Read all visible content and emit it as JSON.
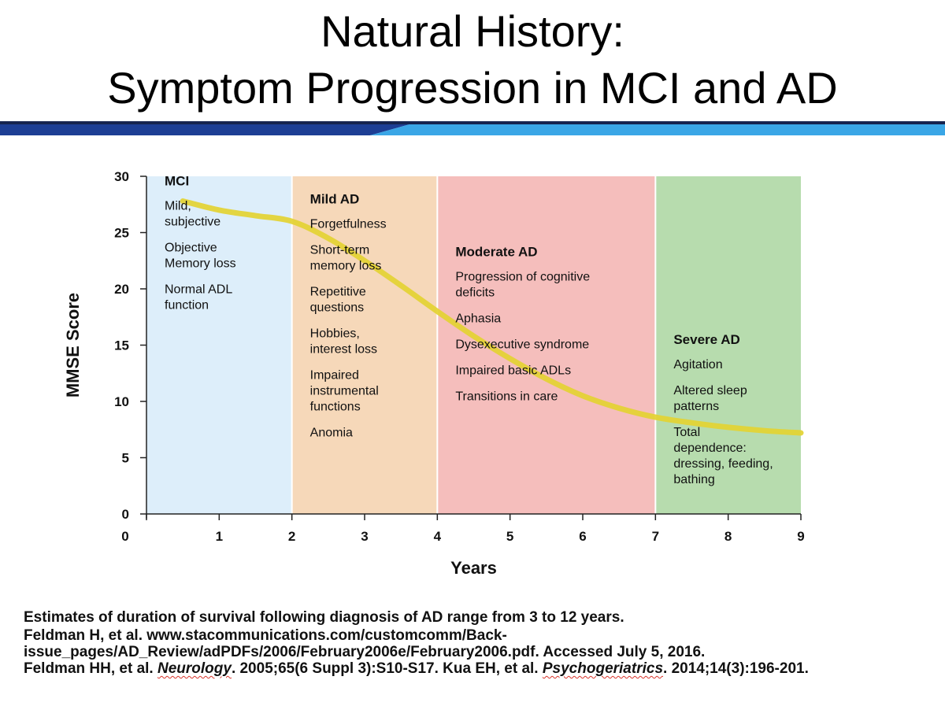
{
  "title": {
    "line1": "Natural History:",
    "line2": "Symptom Progression in MCI and AD"
  },
  "colors": {
    "banner_dark": "#16244f",
    "banner_mid": "#1d3e94",
    "banner_light": "#3aa6e6",
    "curve": "#e3d232",
    "axis": "#222222"
  },
  "chart_data": {
    "type": "line",
    "xlabel": "Years",
    "ylabel": "MMSE Score",
    "xlim": [
      0,
      9
    ],
    "ylim": [
      0,
      30
    ],
    "x_ticks": [
      0,
      1,
      2,
      3,
      4,
      5,
      6,
      7,
      8,
      9
    ],
    "y_ticks": [
      0,
      5,
      10,
      15,
      20,
      25,
      30
    ],
    "series": [
      {
        "name": "MMSE progression",
        "x": [
          0.5,
          1.0,
          1.5,
          2.0,
          2.5,
          3.0,
          3.5,
          4.0,
          4.5,
          5.0,
          5.5,
          6.0,
          6.5,
          7.0,
          7.5,
          8.0,
          8.5,
          9.0
        ],
        "y": [
          27.8,
          27.0,
          26.5,
          26.0,
          24.5,
          22.5,
          20.3,
          18.0,
          15.8,
          13.8,
          12.0,
          10.5,
          9.4,
          8.6,
          8.1,
          7.7,
          7.4,
          7.2
        ]
      }
    ],
    "zones": [
      {
        "name": "MCI",
        "x0": 0,
        "x1": 2,
        "color": "#ddeefa",
        "label_y": 29.2,
        "items": [
          [
            "Mild,",
            "subjective"
          ],
          [
            "Objective",
            "Memory loss"
          ],
          [
            "Normal ADL",
            "function"
          ]
        ]
      },
      {
        "name": "Mild AD",
        "x0": 2,
        "x1": 4,
        "color": "#f6d8b9",
        "label_y": 27.6,
        "items": [
          [
            "Forgetfulness"
          ],
          [
            "Short-term",
            "memory loss"
          ],
          [
            "Repetitive",
            "questions"
          ],
          [
            "Hobbies,",
            "interest loss"
          ],
          [
            "Impaired",
            "instrumental",
            "functions"
          ],
          [
            "Anomia"
          ]
        ]
      },
      {
        "name": "Moderate AD",
        "x0": 4,
        "x1": 7,
        "color": "#f5bebc",
        "label_y": 22.9,
        "items": [
          [
            "Progression of cognitive",
            "deficits"
          ],
          [
            "Aphasia"
          ],
          [
            "Dysexecutive syndrome"
          ],
          [
            "Impaired basic ADLs"
          ],
          [
            "Transitions in care"
          ]
        ]
      },
      {
        "name": "Severe AD",
        "x0": 7,
        "x1": 9,
        "color": "#b7dcae",
        "label_y": 15.1,
        "items": [
          [
            "Agitation"
          ],
          [
            "Altered sleep",
            "patterns"
          ],
          [
            "Total",
            "dependence:",
            "dressing, feeding,",
            "bathing"
          ]
        ]
      }
    ]
  },
  "footnotes": {
    "line1": "Estimates of duration of survival following diagnosis of AD range from 3 to 12 years.",
    "ref_a": "Feldman H, et al. www.stacommunications.com/customcomm/Back-issue_pages/AD_Review/adPDFs/2006/February2006e/February2006.pdf. Accessed July 5, 2016.",
    "ref_b_pre": "Feldman HH, et al.",
    "ref_b_journal": "Neurology",
    "ref_b_cite": ". 2005;65(6 Suppl 3):S10-S17. Kua EH, et al.",
    "ref_c_journal": "Psychogeriatrics",
    "ref_c_cite": ". 2014;14(3):196-201."
  }
}
